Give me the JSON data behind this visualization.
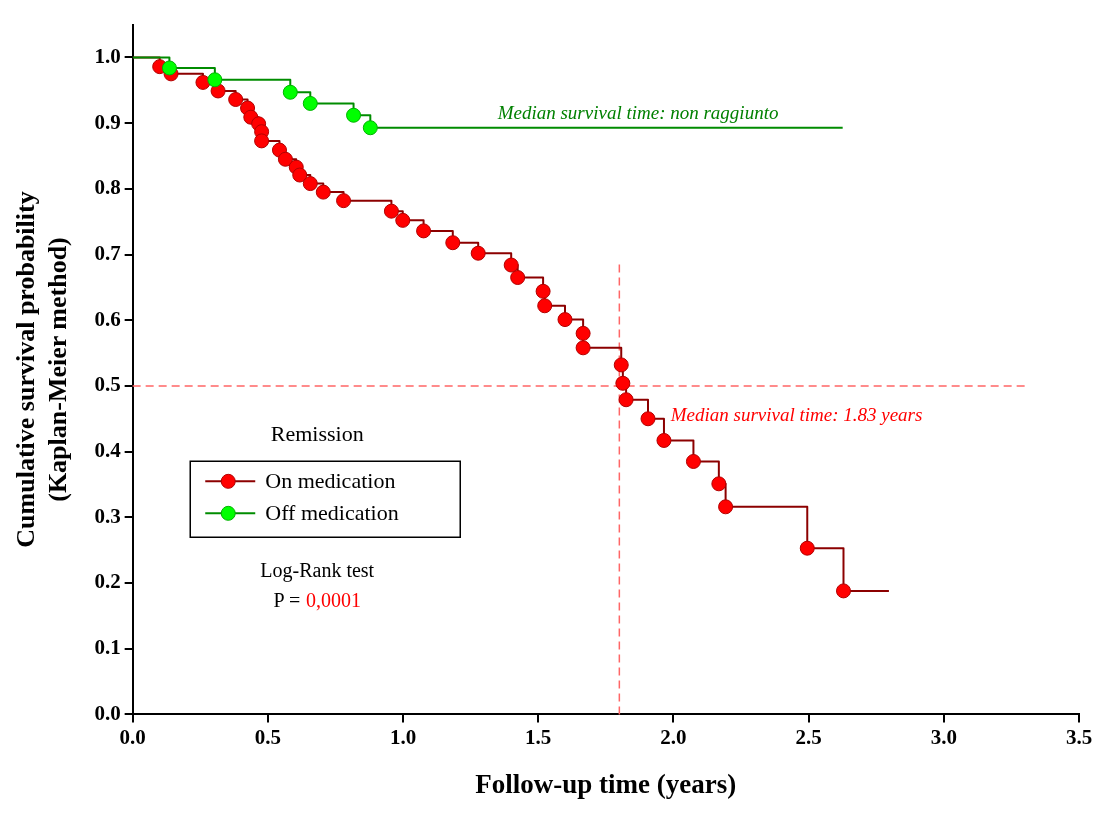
{
  "chart_data": {
    "type": "step",
    "xlabel": "Follow-up time (years)",
    "ylabel": "Cumulative survival probability\n(Kaplan-Meier method)",
    "legend_title": "Remission",
    "series": [
      {
        "name": "On medication",
        "color": "#ff0000",
        "x": [
          0,
          0.1,
          0.142,
          0.26,
          0.316,
          0.381,
          0.425,
          0.437,
          0.466,
          0.477,
          0.477,
          0.543,
          0.565,
          0.605,
          0.618,
          0.657,
          0.705,
          0.78,
          0.957,
          0.999,
          1.076,
          1.184,
          1.278,
          1.4,
          1.424,
          1.518,
          1.524,
          1.599,
          1.666,
          1.666,
          1.807,
          1.813,
          1.825,
          1.906,
          1.965,
          2.074,
          2.168,
          2.193,
          2.495,
          2.629,
          2.797
        ],
        "values": [
          1.0,
          0.986,
          0.975,
          0.962,
          0.949,
          0.936,
          0.923,
          0.909,
          0.899,
          0.887,
          0.873,
          0.859,
          0.845,
          0.833,
          0.821,
          0.808,
          0.795,
          0.782,
          0.766,
          0.752,
          0.736,
          0.718,
          0.702,
          0.684,
          0.665,
          0.644,
          0.622,
          0.601,
          0.58,
          0.558,
          0.532,
          0.504,
          0.479,
          0.45,
          0.417,
          0.385,
          0.351,
          0.316,
          0.253,
          0.188,
          0.188
        ]
      },
      {
        "name": "Off medication",
        "color": "#00ff00",
        "x": [
          0,
          0.136,
          0.304,
          0.583,
          0.657,
          0.817,
          0.879,
          2.626
        ],
        "values": [
          1.0,
          0.984,
          0.966,
          0.947,
          0.93,
          0.912,
          0.893,
          0.893
        ]
      }
    ],
    "xlim": [
      0,
      3.5
    ],
    "ylim": [
      0,
      1.05
    ],
    "xticks": [
      {
        "value": 0,
        "label": "0.0"
      },
      {
        "value": 0.5,
        "label": "0.5"
      },
      {
        "value": 1,
        "label": "1.0"
      },
      {
        "value": 1.5,
        "label": "1.5"
      },
      {
        "value": 2,
        "label": "2.0"
      },
      {
        "value": 2.5,
        "label": "2.5"
      },
      {
        "value": 3,
        "label": "3.0"
      },
      {
        "value": 3.5,
        "label": "3.5"
      }
    ],
    "yticks": [
      {
        "value": 0,
        "label": "0.0"
      },
      {
        "value": 0.1,
        "label": "0.1"
      },
      {
        "value": 0.2,
        "label": "0.2"
      },
      {
        "value": 0.3,
        "label": "0.3"
      },
      {
        "value": 0.4,
        "label": "0.4"
      },
      {
        "value": 0.5,
        "label": "0.5"
      },
      {
        "value": 0.6,
        "label": "0.6"
      },
      {
        "value": 0.7,
        "label": "0.7"
      },
      {
        "value": 0.8,
        "label": "0.8"
      },
      {
        "value": 0.9,
        "label": "0.9"
      },
      {
        "value": 1,
        "label": "1.0"
      }
    ],
    "ref_lines": [
      {
        "axis": "x",
        "value": 1.8,
        "color": "#ff6666",
        "line_style": "dashed"
      },
      {
        "axis": "y",
        "value": 0.5,
        "color": "#ff6666",
        "line_style": "dashed"
      }
    ],
    "annotations": [
      "Median survival time: non raggiunto",
      "Median survival time: 1.83 years",
      "Log-Rank test",
      "P = 0,0001"
    ],
    "legend": "left",
    "grid": false,
    "marker": "circle",
    "line_style": "solid"
  }
}
